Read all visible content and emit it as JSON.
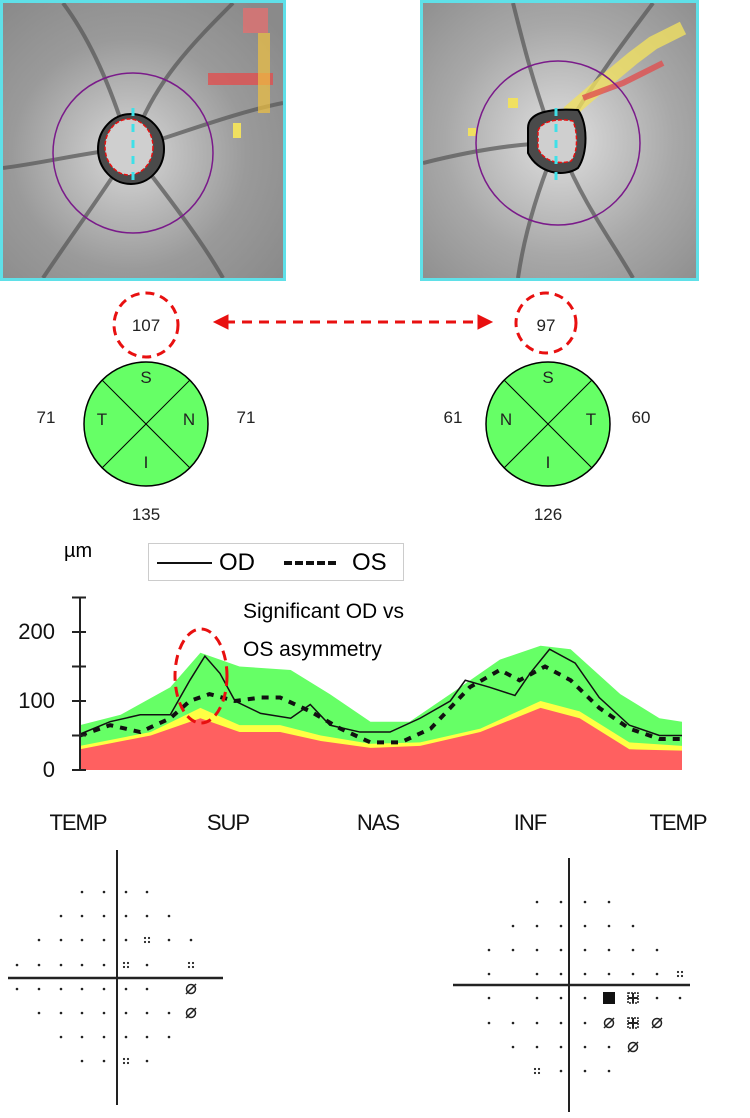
{
  "colors": {
    "fundus_border": "#5fe0e8",
    "normal": "#66ff66",
    "borderline": "#ffff44",
    "abnormal": "#ff6060",
    "od_line": "#111111",
    "os_line": "#111111",
    "highlight": "#e81010",
    "scan_circle": "#7a1a8a"
  },
  "sector_od": {
    "superior": "107",
    "temporal": "71",
    "nasal": "71",
    "inferior": "135",
    "quadrant_labels": {
      "top": "S",
      "left": "T",
      "right": "N",
      "bottom": "I"
    }
  },
  "sector_os": {
    "superior": "97",
    "temporal": "60",
    "nasal": "61",
    "inferior": "126",
    "quadrant_labels": {
      "top": "S",
      "left": "N",
      "right": "T",
      "bottom": "I"
    }
  },
  "chart_data": {
    "type": "area",
    "ylabel": "µm",
    "ylim": [
      0,
      250
    ],
    "yticks": [
      "0",
      "100",
      "200"
    ],
    "xtick_labels": [
      "TEMP",
      "SUP",
      "NAS",
      "INF",
      "TEMP"
    ],
    "xlim": [
      0,
      4
    ],
    "legend": {
      "placement": "top",
      "entries": [
        "OD",
        "OS"
      ]
    },
    "annotation": [
      "Significant OD vs",
      "OS asymmetry"
    ],
    "normative_bands": {
      "green_upper": [
        [
          0,
          65
        ],
        [
          0.27,
          80
        ],
        [
          0.6,
          120
        ],
        [
          0.8,
          170
        ],
        [
          1.06,
          150
        ],
        [
          1.4,
          145
        ],
        [
          1.66,
          110
        ],
        [
          1.93,
          70
        ],
        [
          2.19,
          70
        ],
        [
          2.46,
          110
        ],
        [
          2.79,
          160
        ],
        [
          3.06,
          180
        ],
        [
          3.26,
          175
        ],
        [
          3.59,
          110
        ],
        [
          3.85,
          75
        ],
        [
          4,
          70
        ]
      ],
      "yellow_upper": [
        [
          0,
          35
        ],
        [
          0.47,
          55
        ],
        [
          0.8,
          90
        ],
        [
          1.06,
          65
        ],
        [
          1.33,
          65
        ],
        [
          1.6,
          50
        ],
        [
          1.93,
          38
        ],
        [
          2.26,
          40
        ],
        [
          2.66,
          60
        ],
        [
          3.06,
          100
        ],
        [
          3.32,
          85
        ],
        [
          3.65,
          40
        ],
        [
          4,
          35
        ]
      ],
      "red_upper": [
        [
          0,
          30
        ],
        [
          0.47,
          50
        ],
        [
          0.8,
          75
        ],
        [
          1.06,
          55
        ],
        [
          1.33,
          55
        ],
        [
          1.6,
          42
        ],
        [
          1.93,
          32
        ],
        [
          2.26,
          35
        ],
        [
          2.66,
          55
        ],
        [
          3.06,
          90
        ],
        [
          3.32,
          75
        ],
        [
          3.65,
          30
        ],
        [
          4,
          28
        ]
      ]
    },
    "series": [
      {
        "name": "OD",
        "style": "solid",
        "points": [
          [
            0,
            52
          ],
          [
            0.2,
            70
          ],
          [
            0.4,
            80
          ],
          [
            0.6,
            80
          ],
          [
            0.73,
            130
          ],
          [
            0.83,
            165
          ],
          [
            0.93,
            140
          ],
          [
            1.03,
            100
          ],
          [
            1.2,
            82
          ],
          [
            1.4,
            75
          ],
          [
            1.53,
            95
          ],
          [
            1.66,
            65
          ],
          [
            1.86,
            55
          ],
          [
            2.06,
            55
          ],
          [
            2.26,
            75
          ],
          [
            2.46,
            100
          ],
          [
            2.56,
            130
          ],
          [
            2.72,
            120
          ],
          [
            2.89,
            108
          ],
          [
            2.99,
            140
          ],
          [
            3.12,
            175
          ],
          [
            3.29,
            155
          ],
          [
            3.45,
            105
          ],
          [
            3.65,
            65
          ],
          [
            3.85,
            50
          ],
          [
            4,
            50
          ]
        ]
      },
      {
        "name": "OS",
        "style": "dashed",
        "points": [
          [
            0,
            50
          ],
          [
            0.2,
            65
          ],
          [
            0.4,
            55
          ],
          [
            0.6,
            75
          ],
          [
            0.73,
            100
          ],
          [
            0.86,
            110
          ],
          [
            1.03,
            100
          ],
          [
            1.2,
            105
          ],
          [
            1.33,
            105
          ],
          [
            1.53,
            85
          ],
          [
            1.73,
            60
          ],
          [
            1.93,
            40
          ],
          [
            2.13,
            40
          ],
          [
            2.33,
            60
          ],
          [
            2.46,
            90
          ],
          [
            2.59,
            120
          ],
          [
            2.79,
            145
          ],
          [
            2.92,
            130
          ],
          [
            3.09,
            150
          ],
          [
            3.26,
            130
          ],
          [
            3.45,
            90
          ],
          [
            3.65,
            60
          ],
          [
            3.85,
            45
          ],
          [
            4,
            45
          ]
        ]
      }
    ]
  },
  "visual_field_od": {
    "rows": [
      "   ....  ",
      "  ...... ",
      " .....:..",
      ".....:. :",
      "....... x",
      " .......x",
      "  ......  ",
      "   ..:.  "
    ]
  },
  "visual_field_os": {
    "rows": [
      "  ....   ",
      " ......  ",
      "........ ",
      ". ......:",
      ". ...BX..",
      ".....xXx ",
      " .....x  ",
      "  :...   "
    ]
  }
}
